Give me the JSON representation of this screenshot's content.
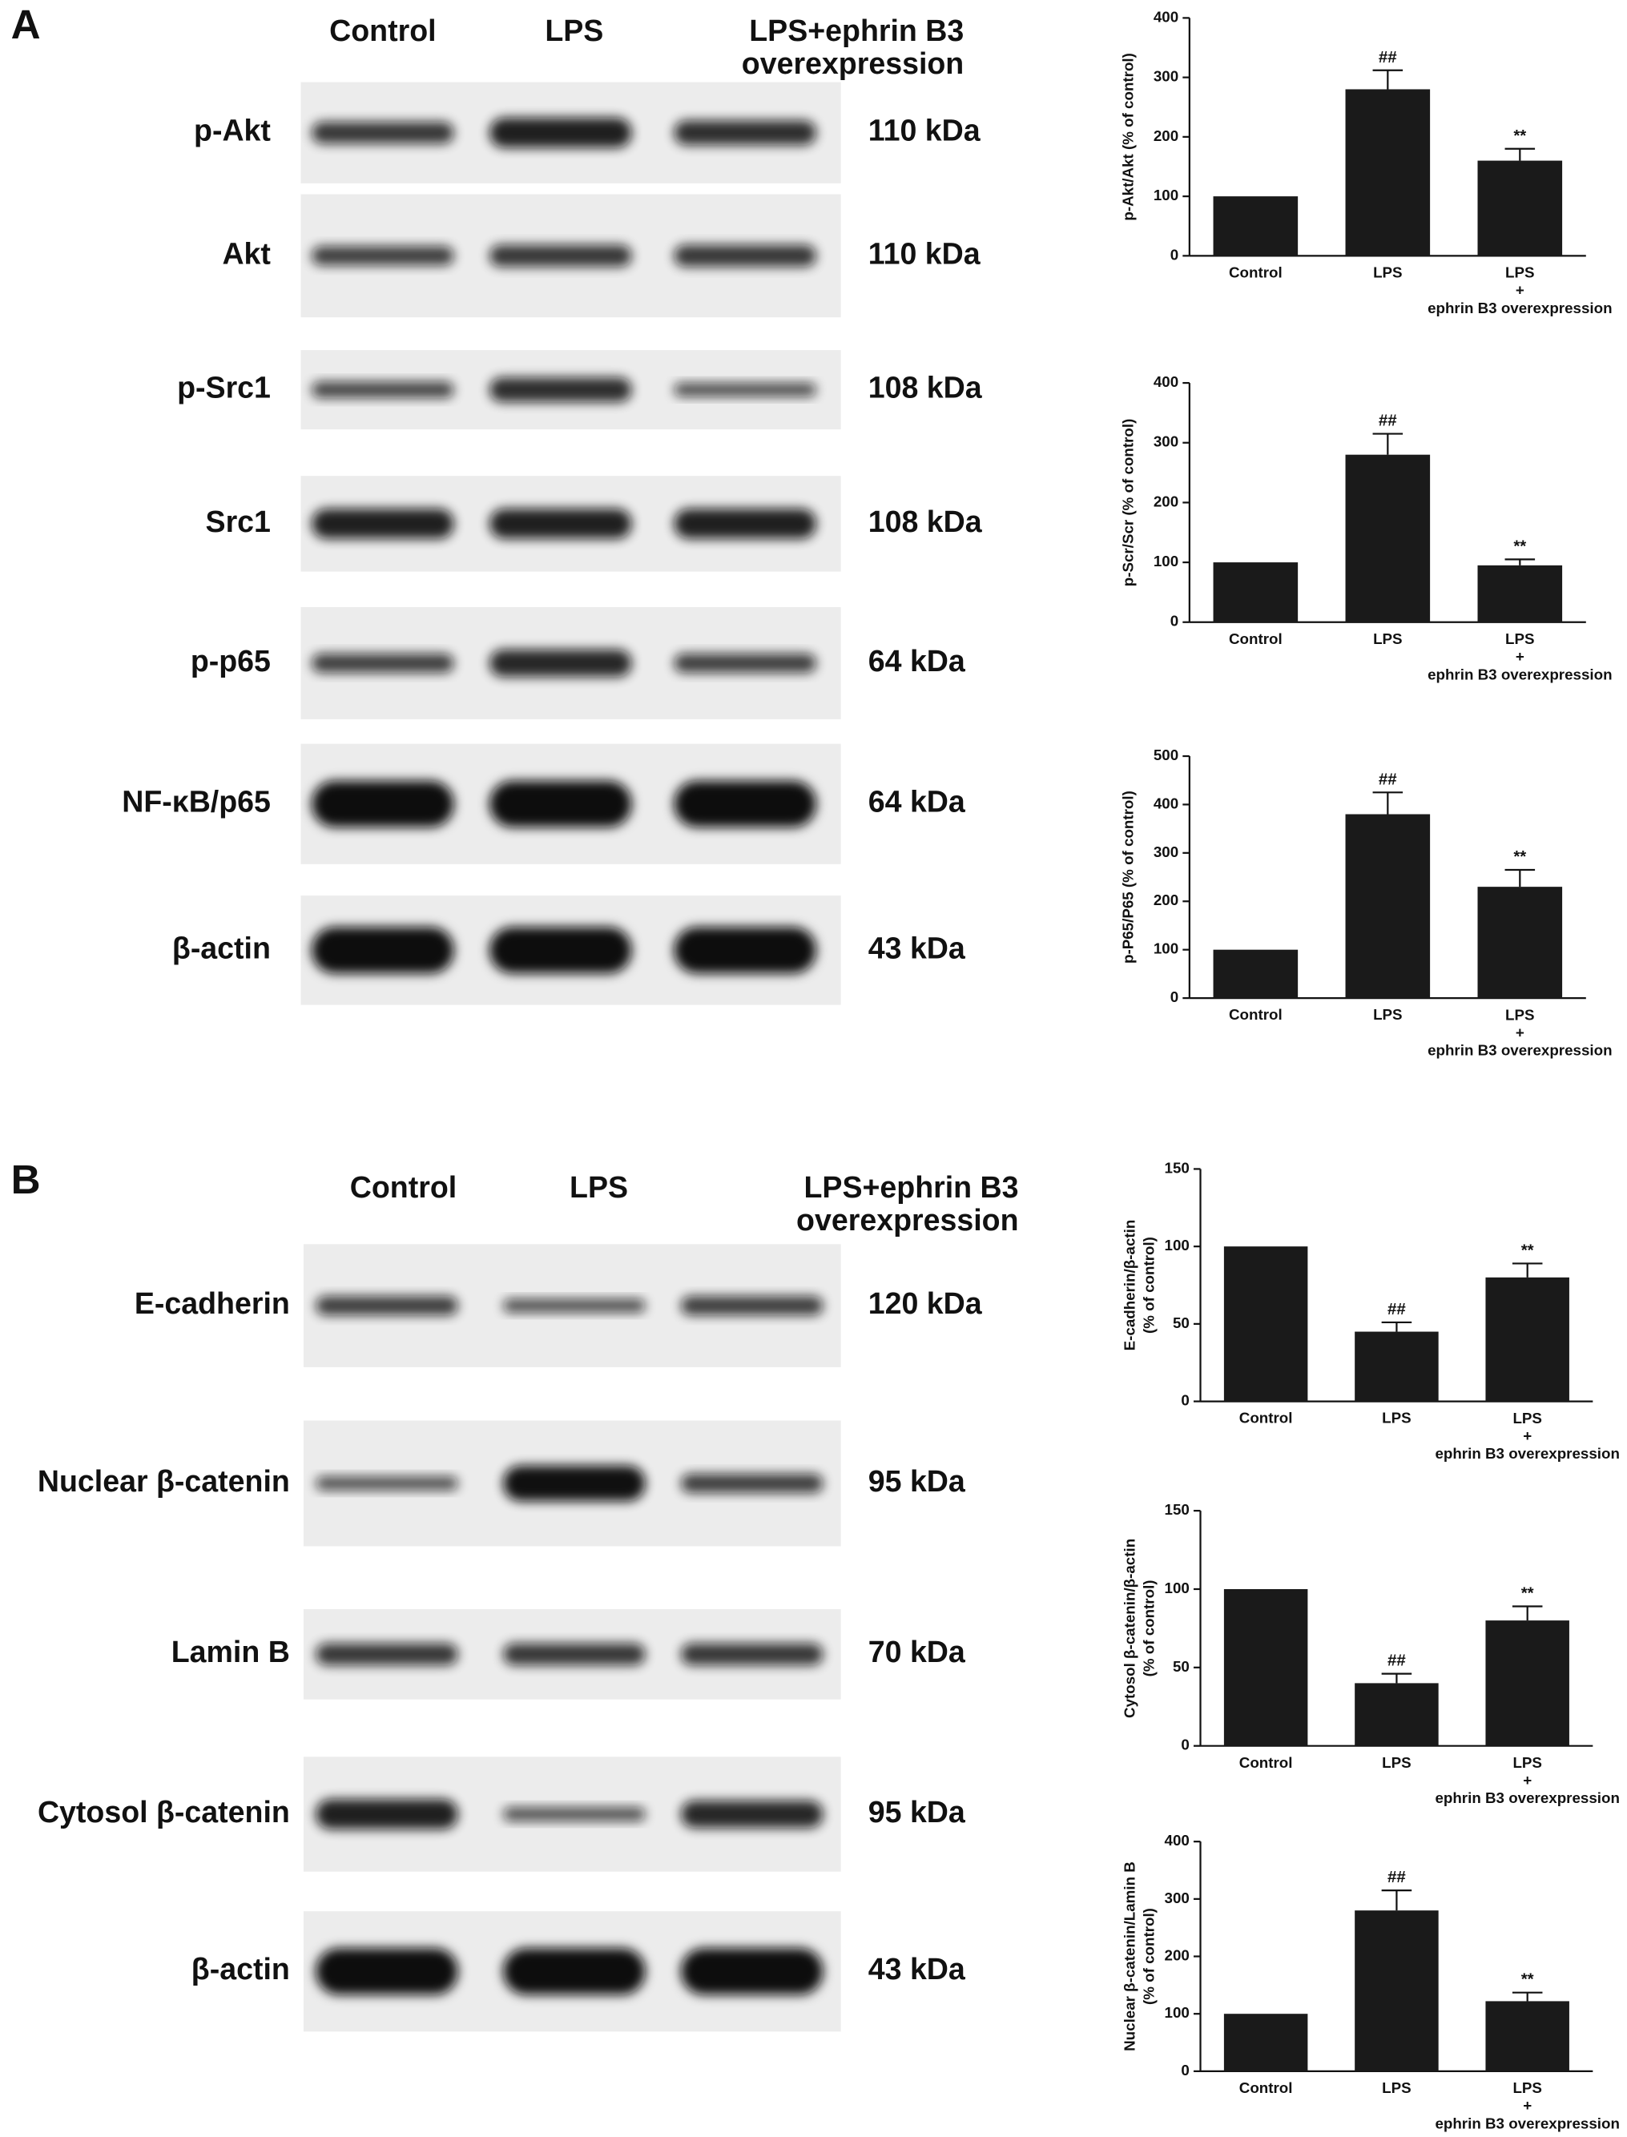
{
  "panels": [
    {
      "letter": "A",
      "lanes": [
        "Control",
        "LPS",
        "LPS+ephrin B3\noverexpression"
      ],
      "blots": [
        {
          "protein": "p-Akt",
          "size": "110 kDa"
        },
        {
          "protein": "Akt",
          "size": "110 kDa"
        },
        {
          "protein": "p-Src1",
          "size": "108 kDa"
        },
        {
          "protein": "Src1",
          "size": "108 kDa"
        },
        {
          "protein": "p-p65",
          "size": "64 kDa"
        },
        {
          "protein": "NF-κB/p65",
          "size": "64 kDa"
        },
        {
          "protein": "β-actin",
          "size": "43 kDa"
        }
      ]
    },
    {
      "letter": "B",
      "lanes": [
        "Control",
        "LPS",
        "LPS+ephrin B3\noverexpression"
      ],
      "blots": [
        {
          "protein": "E-cadherin",
          "size": "120 kDa"
        },
        {
          "protein": "Nuclear β-catenin",
          "size": "95 kDa"
        },
        {
          "protein": "Lamin B",
          "size": "70 kDa"
        },
        {
          "protein": "Cytosol β-catenin",
          "size": "95 kDa"
        },
        {
          "protein": "β-actin",
          "size": "43 kDa"
        }
      ]
    }
  ],
  "chart_data": [
    {
      "type": "bar",
      "ylabel": "p-Akt/Akt (% of control)",
      "categories": [
        "Control",
        "LPS",
        "LPS\n+\nephrin B3 overexpression"
      ],
      "values": [
        100,
        280,
        160
      ],
      "errors": [
        null,
        32,
        20
      ],
      "annotations": [
        null,
        "##",
        "**"
      ],
      "color": "#1a1a1a",
      "ylim": [
        0,
        400
      ],
      "yticks": [
        0,
        100,
        200,
        300,
        400
      ]
    },
    {
      "type": "bar",
      "ylabel": "p-Scr/Scr (% of control)",
      "categories": [
        "Control",
        "LPS",
        "LPS\n+\nephrin B3 overexpression"
      ],
      "values": [
        100,
        280,
        95
      ],
      "errors": [
        null,
        35,
        10
      ],
      "annotations": [
        null,
        "##",
        "**"
      ],
      "color": "#1a1a1a",
      "ylim": [
        0,
        400
      ],
      "yticks": [
        0,
        100,
        200,
        300,
        400
      ]
    },
    {
      "type": "bar",
      "ylabel": "p-P65/P65 (% of control)",
      "categories": [
        "Control",
        "LPS",
        "LPS\n+\nephrin B3 overexpression"
      ],
      "values": [
        100,
        380,
        230
      ],
      "errors": [
        null,
        45,
        35
      ],
      "annotations": [
        null,
        "##",
        "**"
      ],
      "color": "#1a1a1a",
      "ylim": [
        0,
        500
      ],
      "yticks": [
        0,
        100,
        200,
        300,
        400,
        500
      ]
    },
    {
      "type": "bar",
      "ylabel": "E-cadherin/β-actin\n(% of control)",
      "categories": [
        "Control",
        "LPS",
        "LPS\n+\nephrin B3 overexpression"
      ],
      "values": [
        100,
        45,
        80
      ],
      "errors": [
        null,
        6,
        9
      ],
      "annotations": [
        null,
        "##",
        "**"
      ],
      "color": "#1a1a1a",
      "ylim": [
        0,
        150
      ],
      "yticks": [
        0,
        50,
        100,
        150
      ]
    },
    {
      "type": "bar",
      "ylabel": "Cytosol β-catenin/β-actin\n(% of control)",
      "categories": [
        "Control",
        "LPS",
        "LPS\n+\nephrin B3 overexpression"
      ],
      "values": [
        100,
        40,
        80
      ],
      "errors": [
        null,
        6,
        9
      ],
      "annotations": [
        null,
        "##",
        "**"
      ],
      "color": "#1a1a1a",
      "ylim": [
        0,
        150
      ],
      "yticks": [
        0,
        50,
        100,
        150
      ]
    },
    {
      "type": "bar",
      "ylabel": "Nuclear β-catenin/Lamin B\n(% of control)",
      "categories": [
        "Control",
        "LPS",
        "LPS\n+\nephrin B3 overexpression"
      ],
      "values": [
        100,
        280,
        122
      ],
      "errors": [
        null,
        35,
        15
      ],
      "annotations": [
        null,
        "##",
        "**"
      ],
      "color": "#1a1a1a",
      "ylim": [
        0,
        400
      ],
      "yticks": [
        0,
        100,
        200,
        300,
        400
      ]
    }
  ]
}
